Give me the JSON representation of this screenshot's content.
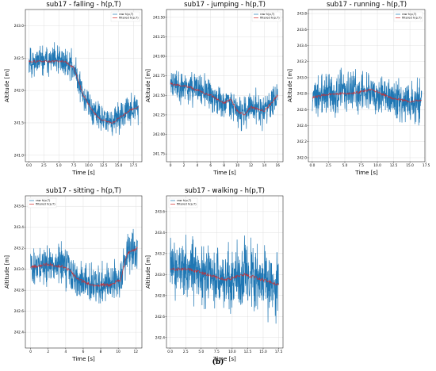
{
  "figure_label": "(b)",
  "chart_data": [
    {
      "type": "line",
      "title": "sub17 - falling - h(p,T)",
      "xlabel": "Time [s]",
      "ylabel": "Altitude [m]",
      "xlim": [
        -0.6,
        18.9
      ],
      "ylim": [
        240.9,
        243.25
      ],
      "xticks": [
        0.0,
        2.5,
        5.0,
        7.5,
        10.0,
        12.5,
        15.0,
        17.5
      ],
      "xtick_labels": [
        "0.0",
        "2.5",
        "5.0",
        "7.5",
        "10.0",
        "12.5",
        "15.0",
        "17.5"
      ],
      "yticks": [
        241.0,
        241.5,
        242.0,
        242.5,
        243.0
      ],
      "ytick_labels": [
        "241.0",
        "241.5",
        "242.0",
        "242.5",
        "243.0"
      ],
      "legend_loc": "top-right",
      "series": [
        {
          "name": "raw h(p,T)",
          "color": "#1f77b4",
          "noise": 0.22,
          "seed": 11
        },
        {
          "name": "filtered h(p,T)",
          "color": "#d62728"
        }
      ],
      "trend_x": [
        0,
        2,
        4,
        6,
        7.5,
        9,
        10.5,
        12,
        14,
        15.5,
        17,
        18.3
      ],
      "trend_y": [
        242.45,
        242.45,
        242.45,
        242.45,
        242.35,
        241.95,
        241.7,
        241.55,
        241.5,
        241.6,
        241.7,
        241.75
      ]
    },
    {
      "type": "line",
      "title": "sub17 - jumping - h(p,T)",
      "xlabel": "Time [s]",
      "ylabel": "Altitude [m]",
      "xlim": [
        -0.6,
        16.8
      ],
      "ylim": [
        241.65,
        243.6
      ],
      "xticks": [
        0,
        2,
        4,
        6,
        8,
        10,
        12,
        14,
        16
      ],
      "xtick_labels": [
        "0",
        "2",
        "4",
        "6",
        "8",
        "10",
        "12",
        "14",
        "16"
      ],
      "yticks": [
        241.75,
        242.0,
        242.25,
        242.5,
        242.75,
        243.0,
        243.25,
        243.5
      ],
      "ytick_labels": [
        "241.75",
        "242.00",
        "242.25",
        "242.50",
        "242.75",
        "243.00",
        "243.25",
        "243.50"
      ],
      "legend_loc": "top-right",
      "series": [
        {
          "name": "raw h(p,T)",
          "color": "#1f77b4",
          "noise": 0.2,
          "seed": 23
        },
        {
          "name": "filtered h(p,T)",
          "color": "#d62728"
        }
      ],
      "trend_x": [
        0,
        3,
        6,
        8,
        9,
        10,
        11,
        12,
        14,
        16
      ],
      "trend_y": [
        242.65,
        242.6,
        242.5,
        242.4,
        242.45,
        242.3,
        242.25,
        242.35,
        242.3,
        242.5
      ]
    },
    {
      "type": "line",
      "title": "sub17 - running - h(p,T)",
      "xlabel": "Time [s]",
      "ylabel": "Altitude [m]",
      "xlim": [
        -0.6,
        17.3
      ],
      "ylim": [
        241.95,
        243.85
      ],
      "xticks": [
        0.0,
        2.5,
        5.0,
        7.5,
        10.0,
        12.5,
        15.0,
        17.5
      ],
      "xtick_labels": [
        "0.0",
        "2.5",
        "5.0",
        "7.5",
        "10.0",
        "12.5",
        "15.0",
        "17.5"
      ],
      "yticks": [
        242.0,
        242.2,
        242.4,
        242.6,
        242.8,
        243.0,
        243.2,
        243.4,
        243.6,
        243.8
      ],
      "ytick_labels": [
        "242.0",
        "242.2",
        "242.4",
        "242.6",
        "242.8",
        "243.0",
        "243.2",
        "243.4",
        "243.6",
        "243.8"
      ],
      "legend_loc": "top-right",
      "series": [
        {
          "name": "raw h(p,T)",
          "color": "#1f77b4",
          "noise": 0.25,
          "seed": 37
        },
        {
          "name": "filtered h(p,T)",
          "color": "#d62728"
        }
      ],
      "trend_x": [
        0,
        3,
        6,
        9,
        12,
        15,
        16.8
      ],
      "trend_y": [
        242.75,
        242.8,
        242.8,
        242.85,
        242.75,
        242.7,
        242.72
      ]
    },
    {
      "type": "line",
      "title": "sub17 - sitting - h(p,T)",
      "xlabel": "Time [s]",
      "ylabel": "Altitude [m]",
      "xlim": [
        -0.6,
        12.7
      ],
      "ylim": [
        242.25,
        243.7
      ],
      "xticks": [
        0,
        2,
        4,
        6,
        8,
        10,
        12
      ],
      "xtick_labels": [
        "0",
        "2",
        "4",
        "6",
        "8",
        "10",
        "12"
      ],
      "yticks": [
        242.4,
        242.6,
        242.8,
        243.0,
        243.2,
        243.4,
        243.6
      ],
      "ytick_labels": [
        "242.4",
        "242.6",
        "242.8",
        "243.0",
        "243.2",
        "243.4",
        "243.6"
      ],
      "legend_loc": "top-left",
      "series": [
        {
          "name": "raw h(p,T)",
          "color": "#1f77b4",
          "noise": 0.18,
          "seed": 51
        },
        {
          "name": "filtered h(p,T)",
          "color": "#d62728"
        }
      ],
      "trend_x": [
        0,
        2,
        4,
        5.5,
        7,
        9,
        10.3,
        11,
        12.2
      ],
      "trend_y": [
        243.02,
        243.05,
        243.02,
        242.9,
        242.85,
        242.85,
        242.9,
        243.15,
        243.2
      ]
    },
    {
      "type": "line",
      "title": "sub17 - walking - h(p,T)",
      "xlabel": "Time [s]",
      "ylabel": "Altitude [m]",
      "xlim": [
        -0.6,
        18.2
      ],
      "ylim": [
        242.3,
        243.75
      ],
      "xticks": [
        0.0,
        2.5,
        5.0,
        7.5,
        10.0,
        12.5,
        15.0,
        17.5
      ],
      "xtick_labels": [
        "0.0",
        "2.5",
        "5.0",
        "7.5",
        "10.0",
        "12.5",
        "15.0",
        "17.5"
      ],
      "yticks": [
        242.4,
        242.6,
        242.8,
        243.0,
        243.2,
        243.4,
        243.6
      ],
      "ytick_labels": [
        "242.4",
        "242.6",
        "242.8",
        "243.0",
        "243.2",
        "243.4",
        "243.6"
      ],
      "legend_loc": "top-left",
      "series": [
        {
          "name": "raw h(p,T)",
          "color": "#1f77b4",
          "noise": 0.28,
          "seed": 73
        },
        {
          "name": "filtered h(p,T)",
          "color": "#d62728"
        }
      ],
      "trend_x": [
        0,
        3,
        6,
        9,
        12,
        15,
        17.5
      ],
      "trend_y": [
        243.05,
        243.05,
        243.0,
        242.95,
        243.0,
        242.95,
        242.9
      ]
    }
  ]
}
